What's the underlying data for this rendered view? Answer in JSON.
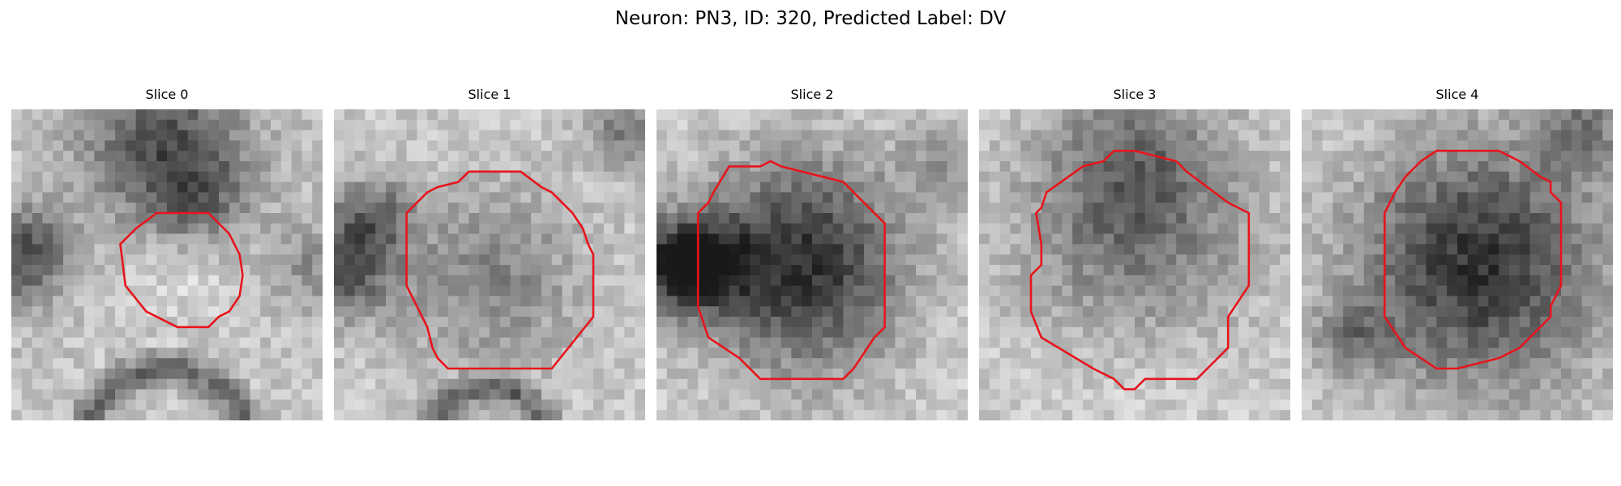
{
  "title": "Neuron: PN3, ID: 320, Predicted Label: DV",
  "contour_color": "#e8141c",
  "panels": [
    {
      "label": "Slice 0",
      "scene": "slice0"
    },
    {
      "label": "Slice 1",
      "scene": "slice1"
    },
    {
      "label": "Slice 2",
      "scene": "slice2"
    },
    {
      "label": "Slice 3",
      "scene": "slice3"
    },
    {
      "label": "Slice 4",
      "scene": "slice4"
    }
  ]
}
